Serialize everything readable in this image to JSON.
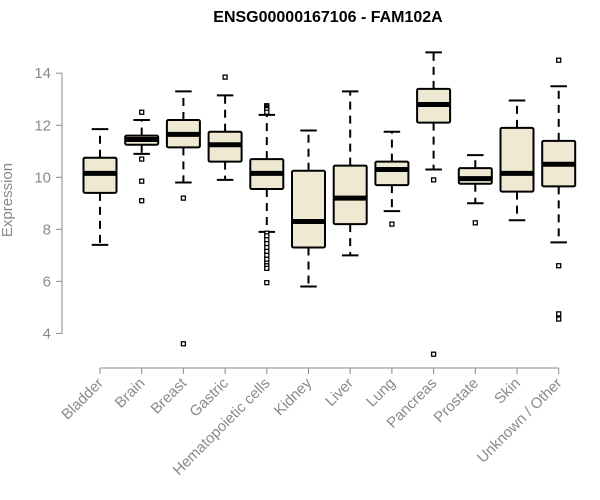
{
  "chart_data": {
    "type": "boxplot",
    "title": "ENSG00000167106 - FAM102A",
    "xlabel": "",
    "ylabel": "Expression",
    "ylim": [
      2.9,
      15.2
    ],
    "yticks": [
      4,
      6,
      8,
      10,
      12,
      14
    ],
    "box_fill": "#efe9d3",
    "box_stroke": "#000000",
    "categories": [
      "Bladder",
      "Brain",
      "Breast",
      "Gastric",
      "Hematopoietic cells",
      "Kidney",
      "Liver",
      "Lung",
      "Pancreas",
      "Prostate",
      "Skin",
      "Unknown / Other"
    ],
    "boxes": [
      {
        "whisker_low": 7.4,
        "q1": 9.4,
        "median": 10.15,
        "q3": 10.75,
        "whisker_high": 11.85,
        "outliers": []
      },
      {
        "whisker_low": 10.9,
        "q1": 11.25,
        "median": 11.45,
        "q3": 11.6,
        "whisker_high": 12.2,
        "outliers": [
          12.5,
          10.7,
          9.85,
          9.1
        ]
      },
      {
        "whisker_low": 9.8,
        "q1": 11.15,
        "median": 11.65,
        "q3": 12.2,
        "whisker_high": 13.3,
        "outliers": [
          9.2,
          3.6
        ]
      },
      {
        "whisker_low": 9.9,
        "q1": 10.6,
        "median": 11.25,
        "q3": 11.75,
        "whisker_high": 13.15,
        "outliers": [
          13.85
        ]
      },
      {
        "whisker_low": 7.9,
        "q1": 9.55,
        "median": 10.15,
        "q3": 10.7,
        "whisker_high": 12.4,
        "outliers": [
          12.75,
          12.7,
          12.65,
          12.6,
          12.5,
          7.85,
          7.75,
          7.6,
          7.45,
          7.3,
          7.15,
          7.0,
          6.85,
          6.7,
          6.6,
          6.5,
          5.95
        ]
      },
      {
        "whisker_low": 5.8,
        "q1": 7.3,
        "median": 8.3,
        "q3": 10.25,
        "whisker_high": 11.8,
        "outliers": []
      },
      {
        "whisker_low": 7.0,
        "q1": 8.2,
        "median": 9.2,
        "q3": 10.45,
        "whisker_high": 13.3,
        "outliers": []
      },
      {
        "whisker_low": 8.7,
        "q1": 9.7,
        "median": 10.3,
        "q3": 10.6,
        "whisker_high": 11.75,
        "outliers": [
          8.2
        ]
      },
      {
        "whisker_low": 10.3,
        "q1": 12.1,
        "median": 12.8,
        "q3": 13.4,
        "whisker_high": 14.8,
        "outliers": [
          9.9,
          3.2
        ]
      },
      {
        "whisker_low": 9.0,
        "q1": 9.75,
        "median": 9.95,
        "q3": 10.35,
        "whisker_high": 10.85,
        "outliers": [
          8.25
        ]
      },
      {
        "whisker_low": 8.35,
        "q1": 9.45,
        "median": 10.15,
        "q3": 11.9,
        "whisker_high": 12.95,
        "outliers": []
      },
      {
        "whisker_low": 7.5,
        "q1": 9.65,
        "median": 10.5,
        "q3": 11.4,
        "whisker_high": 13.5,
        "outliers": [
          14.5,
          6.6,
          4.75,
          4.55
        ]
      }
    ]
  }
}
